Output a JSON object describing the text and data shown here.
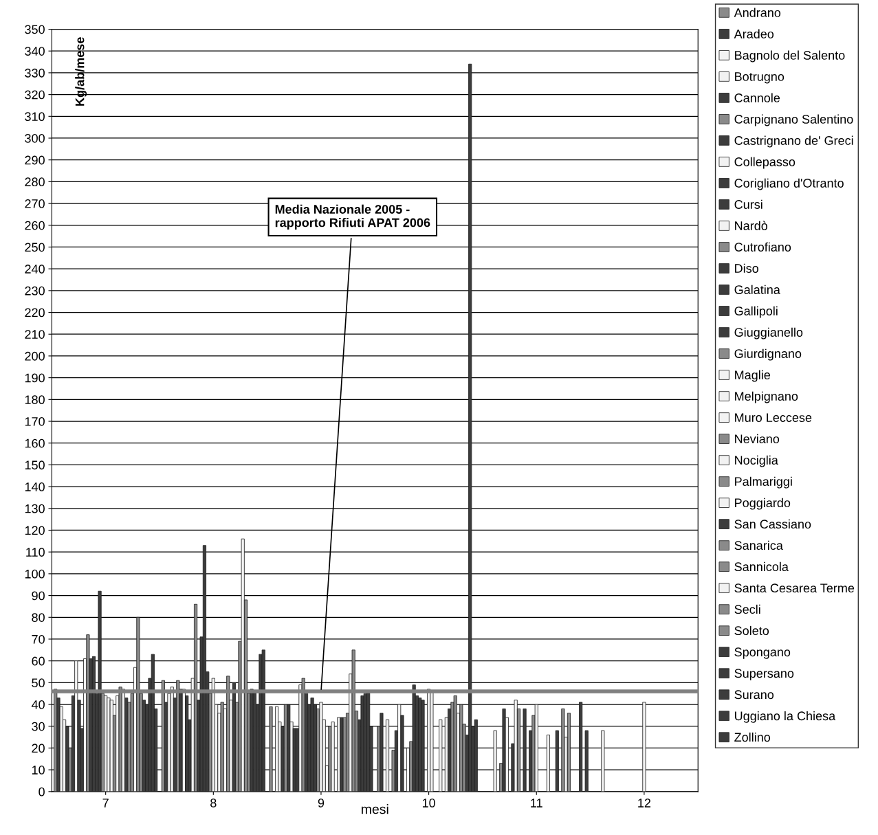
{
  "chart_data": {
    "type": "bar",
    "xlabel": "mesi",
    "ylabel": "Kg/ab/mese",
    "categories": [
      "7",
      "8",
      "9",
      "10",
      "11",
      "12"
    ],
    "ylim": [
      0,
      350
    ],
    "yticks": [
      0,
      10,
      20,
      30,
      40,
      50,
      60,
      70,
      80,
      90,
      100,
      110,
      120,
      130,
      140,
      150,
      160,
      170,
      180,
      190,
      200,
      210,
      220,
      230,
      240,
      250,
      260,
      270,
      280,
      290,
      300,
      310,
      320,
      330,
      340,
      350
    ],
    "grid": "y",
    "legend": "right",
    "ref_lines": [
      {
        "axis": "y",
        "value": 46,
        "label": "Media Nazionale 2005 -\nrapporto Rifiuti APAT 2006",
        "color": "#808080"
      }
    ],
    "series": [
      {
        "name": "Andrano",
        "color": "#8a8a8a",
        "values": [
          47,
          51,
          39,
          30,
          null,
          null
        ]
      },
      {
        "name": "Aradeo",
        "color": "#3c3c3c",
        "values": [
          43,
          41,
          null,
          36,
          null,
          null
        ]
      },
      {
        "name": "Bagnolo del Salento",
        "color": "#f2f2f2",
        "values": [
          39,
          45,
          39,
          null,
          null,
          null
        ]
      },
      {
        "name": "Botrugno",
        "color": "#f2f2f2",
        "values": [
          33,
          48,
          32,
          33,
          28,
          28
        ]
      },
      {
        "name": "Cannole",
        "color": "#3c3c3c",
        "values": [
          30,
          43,
          30,
          null,
          null,
          null
        ]
      },
      {
        "name": "Carpignano Salentino",
        "color": "#8a8a8a",
        "values": [
          20,
          51,
          40,
          19,
          13,
          null
        ]
      },
      {
        "name": "Castrignano de' Greci",
        "color": "#3c3c3c",
        "values": [
          44,
          47,
          40,
          28,
          38,
          null
        ]
      },
      {
        "name": "Collepasso",
        "color": "#f2f2f2",
        "values": [
          60,
          47,
          32,
          40,
          34,
          null
        ]
      },
      {
        "name": "Corigliano d'Otranto",
        "color": "#3c3c3c",
        "values": [
          42,
          44,
          29,
          35,
          null,
          null
        ]
      },
      {
        "name": "Cursi",
        "color": "#3c3c3c",
        "values": [
          29,
          33,
          29,
          null,
          22,
          null
        ]
      },
      {
        "name": "Nardò",
        "color": "#f2f2f2",
        "values": [
          61,
          52,
          49,
          20,
          42,
          null
        ]
      },
      {
        "name": "Cutrofiano",
        "color": "#8a8a8a",
        "values": [
          72,
          86,
          52,
          23,
          38,
          null
        ]
      },
      {
        "name": "Diso",
        "color": "#3c3c3c",
        "values": [
          61,
          42,
          45,
          49,
          null,
          null
        ]
      },
      {
        "name": "Galatina",
        "color": "#3c3c3c",
        "values": [
          62,
          71,
          40,
          44,
          38,
          null
        ]
      },
      {
        "name": "Gallipoli",
        "color": "#3c3c3c",
        "values": [
          45,
          113,
          43,
          43,
          null,
          null
        ]
      },
      {
        "name": "Giuggianello",
        "color": "#3c3c3c",
        "values": [
          92,
          55,
          40,
          42,
          28,
          null
        ]
      },
      {
        "name": "Giurdignano",
        "color": "#8a8a8a",
        "values": [
          45,
          45,
          38,
          null,
          35,
          null
        ]
      },
      {
        "name": "Maglie",
        "color": "#f2f2f2",
        "values": [
          44,
          52,
          41,
          47,
          40,
          41
        ]
      },
      {
        "name": "Melpignano",
        "color": "#f2f2f2",
        "values": [
          43,
          40,
          33,
          46,
          null,
          null
        ]
      },
      {
        "name": "Muro Leccese",
        "color": "#f2f2f2",
        "values": [
          42,
          36,
          12,
          null,
          null,
          null
        ]
      },
      {
        "name": "Neviano",
        "color": "#8a8a8a",
        "values": [
          35,
          41,
          30,
          null,
          null,
          null
        ]
      },
      {
        "name": "Nociglia",
        "color": "#f2f2f2",
        "values": [
          44,
          38,
          32,
          33,
          26,
          null
        ]
      },
      {
        "name": "Palmariggi",
        "color": "#8a8a8a",
        "values": [
          48,
          53,
          null,
          null,
          null,
          null
        ]
      },
      {
        "name": "Poggiardo",
        "color": "#f2f2f2",
        "values": [
          47,
          42,
          34,
          34,
          null,
          null
        ]
      },
      {
        "name": "San Cassiano",
        "color": "#3c3c3c",
        "values": [
          43,
          50,
          34,
          38,
          28,
          null
        ]
      },
      {
        "name": "Sanarica",
        "color": "#8a8a8a",
        "values": [
          41,
          41,
          34,
          41,
          null,
          null
        ]
      },
      {
        "name": "Sannicola",
        "color": "#8a8a8a",
        "values": [
          45,
          69,
          36,
          44,
          38,
          null
        ]
      },
      {
        "name": "Santa Cesarea Terme",
        "color": "#f2f2f2",
        "values": [
          57,
          116,
          54,
          36,
          25,
          null
        ]
      },
      {
        "name": "Secli",
        "color": "#8a8a8a",
        "values": [
          80,
          88,
          65,
          40,
          36,
          null
        ]
      },
      {
        "name": "Soleto",
        "color": "#8a8a8a",
        "values": [
          45,
          45,
          37,
          31,
          null,
          null
        ]
      },
      {
        "name": "Spongano",
        "color": "#3c3c3c",
        "values": [
          42,
          47,
          33,
          26,
          null,
          null
        ]
      },
      {
        "name": "Supersano",
        "color": "#3c3c3c",
        "values": [
          40,
          46,
          44,
          334,
          null,
          null
        ]
      },
      {
        "name": "Surano",
        "color": "#3c3c3c",
        "values": [
          52,
          40,
          45,
          30,
          41,
          null
        ]
      },
      {
        "name": "Uggiano la Chiesa",
        "color": "#3c3c3c",
        "values": [
          63,
          63,
          46,
          33,
          null,
          null
        ]
      },
      {
        "name": "Zollino",
        "color": "#3c3c3c",
        "values": [
          38,
          65,
          30,
          null,
          28,
          null
        ]
      }
    ]
  }
}
